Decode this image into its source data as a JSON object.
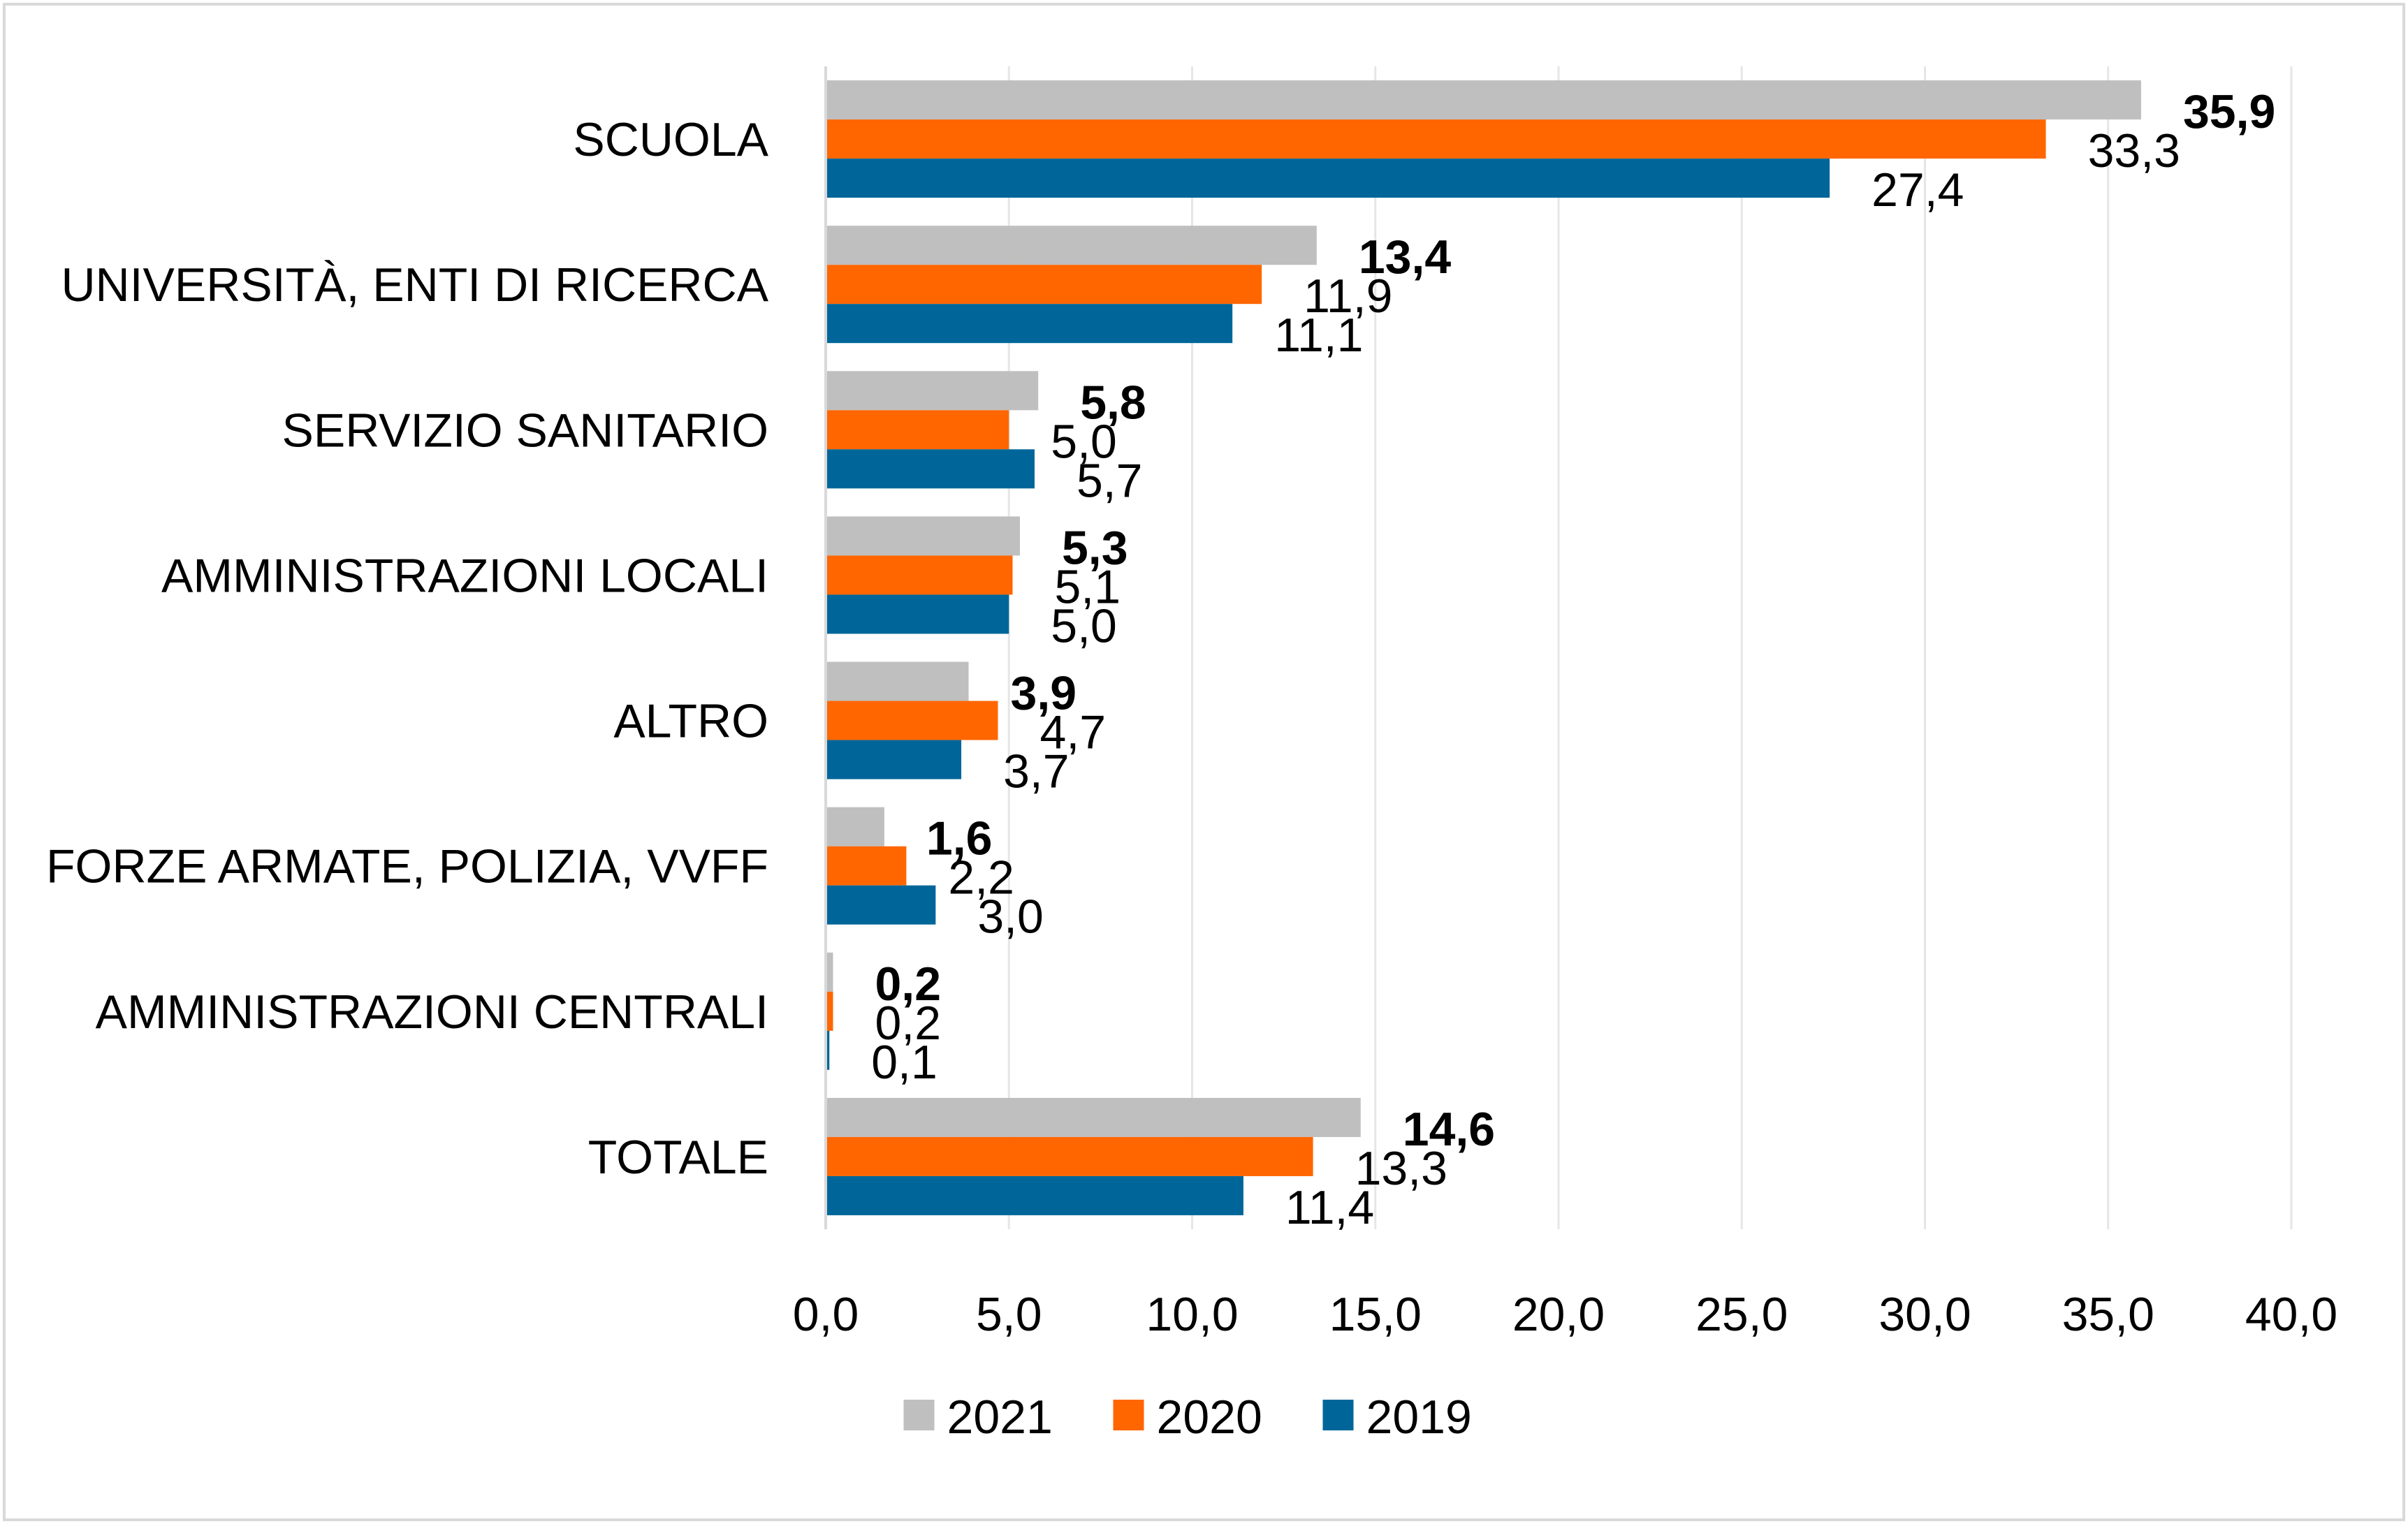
{
  "chart_data": {
    "type": "bar",
    "orientation": "horizontal",
    "categories": [
      "SCUOLA",
      "UNIVERSITÀ, ENTI DI RICERCA",
      "SERVIZIO SANITARIO",
      "AMMINISTRAZIONI LOCALI",
      "ALTRO",
      "FORZE ARMATE, POLIZIA, VVFF",
      "AMMINISTRAZIONI CENTRALI",
      "TOTALE"
    ],
    "series": [
      {
        "name": "2021",
        "color": "#bfbfbf",
        "bold_labels": true,
        "values": [
          35.9,
          13.4,
          5.8,
          5.3,
          3.9,
          1.6,
          0.2,
          14.6
        ],
        "labels": [
          "35,9",
          "13,4",
          "5,8",
          "5,3",
          "3,9",
          "1,6",
          "0,2",
          "14,6"
        ]
      },
      {
        "name": "2020",
        "color": "#ff6600",
        "bold_labels": false,
        "values": [
          33.3,
          11.9,
          5.0,
          5.1,
          4.7,
          2.2,
          0.2,
          13.3
        ],
        "labels": [
          "33,3",
          "11,9",
          "5,0",
          "5,1",
          "4,7",
          "2,2",
          "0,2",
          "13,3"
        ]
      },
      {
        "name": "2019",
        "color": "#006699",
        "bold_labels": false,
        "values": [
          27.4,
          11.1,
          5.7,
          5.0,
          3.7,
          3.0,
          0.1,
          11.4
        ],
        "labels": [
          "27,4",
          "11,1",
          "5,7",
          "5,0",
          "3,7",
          "3,0",
          "0,1",
          "11,4"
        ]
      }
    ],
    "xlim": [
      0,
      40
    ],
    "xticks": [
      0,
      5,
      10,
      15,
      20,
      25,
      30,
      35,
      40
    ],
    "xtick_labels": [
      "0,0",
      "5,0",
      "10,0",
      "15,0",
      "20,0",
      "25,0",
      "30,0",
      "35,0",
      "40,0"
    ],
    "grid": true,
    "legend": "bottom",
    "title": "",
    "xlabel": "",
    "ylabel": ""
  }
}
